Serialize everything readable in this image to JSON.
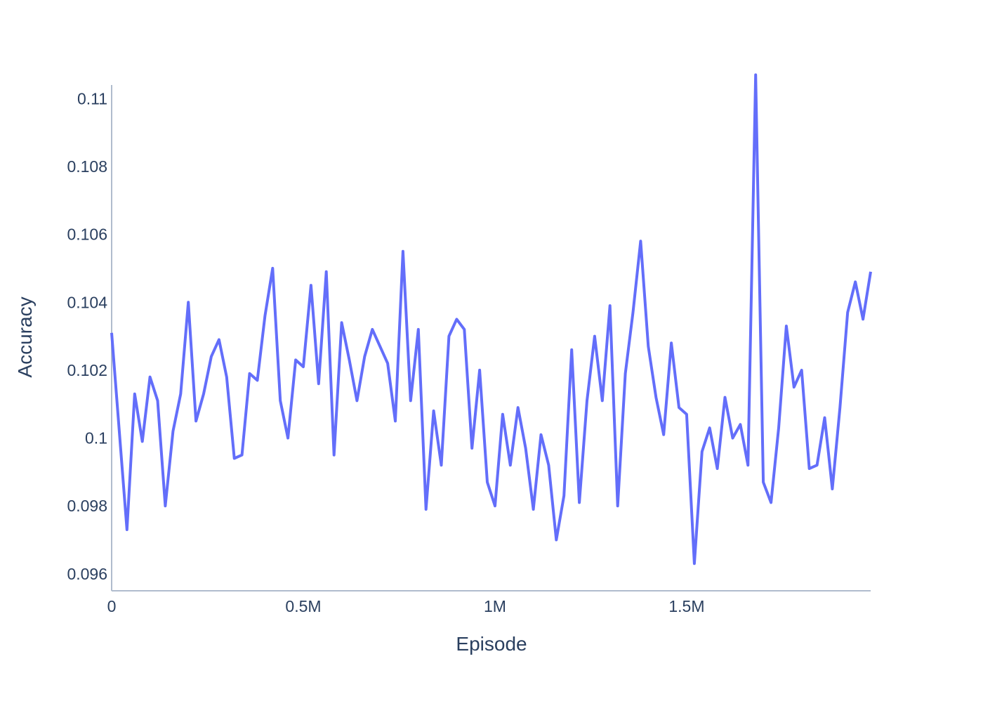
{
  "chart_data": {
    "type": "line",
    "title": "",
    "xlabel": "Episode",
    "ylabel": "Accuracy",
    "xlim": [
      0,
      1980000
    ],
    "ylim": [
      0.0955,
      0.1104
    ],
    "x_ticks": [
      {
        "value": 0,
        "label": "0"
      },
      {
        "value": 500000,
        "label": "0.5M"
      },
      {
        "value": 1000000,
        "label": "1M"
      },
      {
        "value": 1500000,
        "label": "1.5M"
      }
    ],
    "y_ticks": [
      {
        "value": 0.096,
        "label": "0.096"
      },
      {
        "value": 0.098,
        "label": "0.098"
      },
      {
        "value": 0.1,
        "label": "0.1"
      },
      {
        "value": 0.102,
        "label": "0.102"
      },
      {
        "value": 0.104,
        "label": "0.104"
      },
      {
        "value": 0.106,
        "label": "0.106"
      },
      {
        "value": 0.108,
        "label": "0.108"
      },
      {
        "value": 0.11,
        "label": "0.11"
      }
    ],
    "grid": false,
    "legend": "none",
    "line_color": "#636efa",
    "series": [
      {
        "x": [
          0,
          20000,
          40000,
          60000,
          80000,
          100000,
          120000,
          140000,
          160000,
          180000,
          200000,
          220000,
          240000,
          260000,
          280000,
          300000,
          320000,
          340000,
          360000,
          380000,
          400000,
          420000,
          440000,
          460000,
          480000,
          500000,
          520000,
          540000,
          560000,
          580000,
          600000,
          620000,
          640000,
          660000,
          680000,
          700000,
          720000,
          740000,
          760000,
          780000,
          800000,
          820000,
          840000,
          860000,
          880000,
          900000,
          920000,
          940000,
          960000,
          980000,
          1000000,
          1020000,
          1040000,
          1060000,
          1080000,
          1100000,
          1120000,
          1140000,
          1160000,
          1180000,
          1200000,
          1220000,
          1240000,
          1260000,
          1280000,
          1300000,
          1320000,
          1340000,
          1360000,
          1380000,
          1400000,
          1420000,
          1440000,
          1460000,
          1480000,
          1500000,
          1520000,
          1540000,
          1560000,
          1580000,
          1600000,
          1620000,
          1640000,
          1660000,
          1680000,
          1700000,
          1720000,
          1740000,
          1760000,
          1780000,
          1800000,
          1820000,
          1840000,
          1860000,
          1880000,
          1900000,
          1920000,
          1940000,
          1960000,
          1980000
        ],
        "values": [
          0.1031,
          0.1002,
          0.0973,
          0.1013,
          0.0999,
          0.1018,
          0.1011,
          0.098,
          0.1002,
          0.1013,
          0.104,
          0.1005,
          0.1013,
          0.1024,
          0.1029,
          0.1018,
          0.0994,
          0.0995,
          0.1019,
          0.1017,
          0.1036,
          0.105,
          0.1011,
          0.1,
          0.1023,
          0.1021,
          0.1045,
          0.1016,
          0.1049,
          0.0995,
          0.1034,
          0.1023,
          0.1011,
          0.1024,
          0.1032,
          0.1027,
          0.1022,
          0.1005,
          0.1055,
          0.1011,
          0.1032,
          0.0979,
          0.1008,
          0.0992,
          0.103,
          0.1035,
          0.1032,
          0.0997,
          0.102,
          0.0987,
          0.098,
          0.1007,
          0.0992,
          0.1009,
          0.0997,
          0.0979,
          0.1001,
          0.0992,
          0.097,
          0.0983,
          0.1026,
          0.0981,
          0.1011,
          0.103,
          0.1011,
          0.1039,
          0.098,
          0.1019,
          0.1037,
          0.1058,
          0.1027,
          0.1012,
          0.1001,
          0.1028,
          0.1009,
          0.1007,
          0.0963,
          0.0996,
          0.1003,
          0.0991,
          0.1012,
          0.1,
          0.1004,
          0.0992,
          0.1107,
          0.0987,
          0.0981,
          0.1003,
          0.1033,
          0.1015,
          0.102,
          0.0991,
          0.0992,
          0.1006,
          0.0985,
          0.1009,
          0.1037,
          0.1046,
          0.1035,
          0.1049
        ]
      }
    ]
  }
}
